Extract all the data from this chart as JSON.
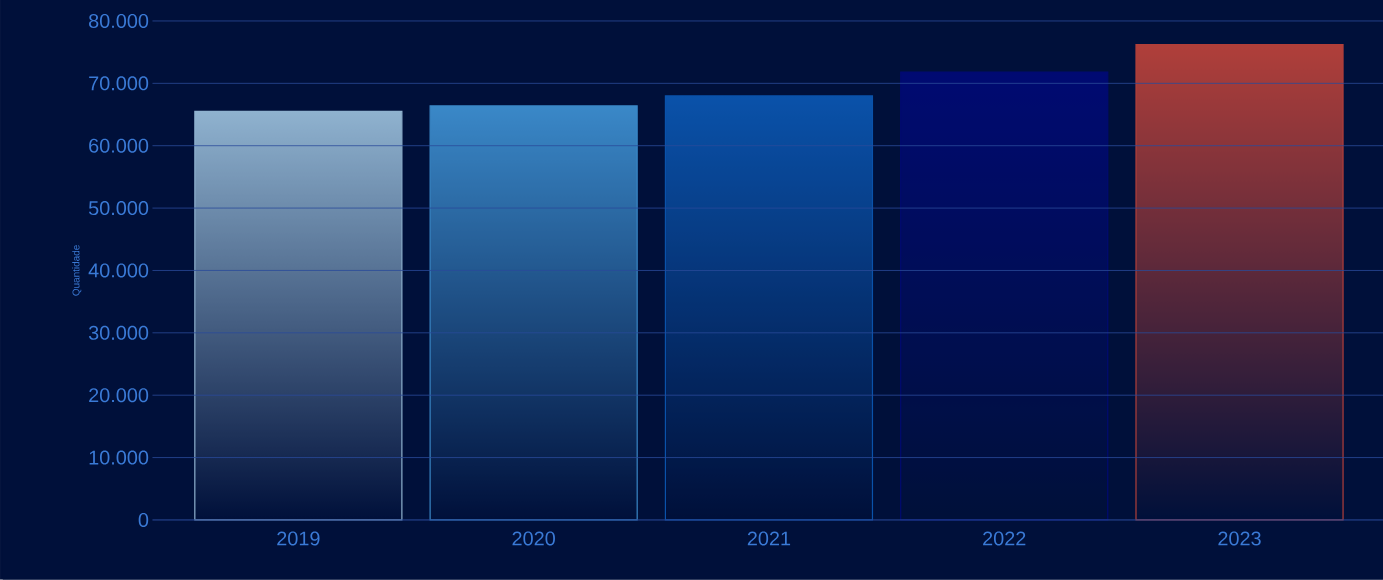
{
  "chart_data": {
    "type": "bar",
    "ylabel": "Quantidade",
    "categories": [
      "2019",
      "2020",
      "2021",
      "2022",
      "2023"
    ],
    "values": [
      65500,
      66400,
      68000,
      71800,
      76200
    ],
    "colors": [
      "#8fb2cf",
      "#3a88c8",
      "#0a52aa",
      "#000a72",
      "#b03f3a"
    ],
    "ylim": [
      0,
      80000
    ],
    "yticks": [
      {
        "value": 0,
        "label": "0"
      },
      {
        "value": 10000,
        "label": "10.000"
      },
      {
        "value": 20000,
        "label": "20.000"
      },
      {
        "value": 30000,
        "label": "30.000"
      },
      {
        "value": 40000,
        "label": "40.000"
      },
      {
        "value": 50000,
        "label": "50.000"
      },
      {
        "value": 60000,
        "label": "60.000"
      },
      {
        "value": 70000,
        "label": "70.000"
      },
      {
        "value": 80000,
        "label": "80.000"
      }
    ],
    "grid": "y"
  }
}
